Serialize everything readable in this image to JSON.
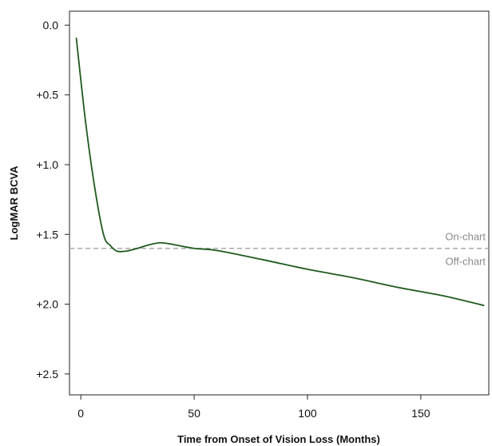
{
  "chart_data": {
    "type": "line",
    "title": "",
    "xlabel": "Time from Onset of Vision Loss (Months)",
    "ylabel": "LogMAR BCVA",
    "xlim": [
      -5,
      180
    ],
    "ylim": [
      -0.1,
      2.65
    ],
    "y_inverted": true,
    "grid": false,
    "x_ticks": [
      0,
      50,
      100,
      150
    ],
    "x_tick_labels": [
      "0",
      "50",
      "100",
      "150"
    ],
    "y_ticks": [
      0.0,
      0.5,
      1.0,
      1.5,
      2.0,
      2.5
    ],
    "y_tick_labels": [
      "0.0",
      "+0.5",
      "+1.0",
      "+1.5",
      "+2.0",
      "+2.5"
    ],
    "series": [
      {
        "color": "#1f5a1f",
        "x": [
          -2,
          2,
          6,
          10,
          13,
          16,
          20,
          25,
          30,
          35,
          40,
          50,
          60,
          80,
          100,
          120,
          140,
          160,
          178
        ],
        "y": [
          0.09,
          0.68,
          1.15,
          1.5,
          1.58,
          1.62,
          1.62,
          1.6,
          1.575,
          1.56,
          1.57,
          1.6,
          1.615,
          1.68,
          1.75,
          1.81,
          1.88,
          1.94,
          2.01
        ]
      }
    ],
    "reference_line": {
      "y": 1.6,
      "style": "dashed",
      "color": "#aaaaaa",
      "label_above": "On-chart",
      "label_below": "Off-chart"
    }
  }
}
